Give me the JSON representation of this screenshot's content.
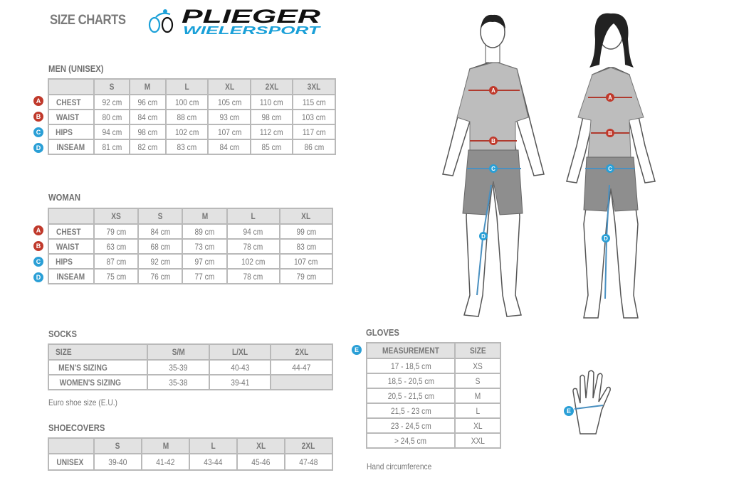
{
  "header": {
    "title": "SIZE CHARTS",
    "logo_text": {
      "line1": "PLIEGER",
      "line2": "WIELERSPORT"
    }
  },
  "colors": {
    "red_badge": "#c0392b",
    "blue_badge": "#2a9fd6",
    "logo_dark": "#111111",
    "logo_blue": "#1aa0d8"
  },
  "men": {
    "label": "MEN (UNISEX)",
    "sizes": [
      "S",
      "M",
      "L",
      "XL",
      "2XL",
      "3XL"
    ],
    "rows": [
      {
        "badge": "A",
        "label": "CHEST",
        "values": [
          "92 cm",
          "96 cm",
          "100 cm",
          "105 cm",
          "110 cm",
          "115 cm"
        ]
      },
      {
        "badge": "B",
        "label": "WAIST",
        "values": [
          "80 cm",
          "84 cm",
          "88 cm",
          "93 cm",
          "98 cm",
          "103 cm"
        ]
      },
      {
        "badge": "C",
        "label": "HIPS",
        "values": [
          "94 cm",
          "98 cm",
          "102 cm",
          "107 cm",
          "112 cm",
          "117 cm"
        ]
      },
      {
        "badge": "D",
        "label": "INSEAM",
        "values": [
          "81 cm",
          "82 cm",
          "83 cm",
          "84 cm",
          "85 cm",
          "86 cm"
        ]
      }
    ]
  },
  "woman": {
    "label": "WOMAN",
    "sizes": [
      "XS",
      "S",
      "M",
      "L",
      "XL"
    ],
    "rows": [
      {
        "badge": "A",
        "label": "CHEST",
        "values": [
          "79 cm",
          "84 cm",
          "89 cm",
          "94 cm",
          "99 cm"
        ]
      },
      {
        "badge": "B",
        "label": "WAIST",
        "values": [
          "63 cm",
          "68 cm",
          "73 cm",
          "78 cm",
          "83 cm"
        ]
      },
      {
        "badge": "C",
        "label": "HIPS",
        "values": [
          "87 cm",
          "92 cm",
          "97 cm",
          "102 cm",
          "107 cm"
        ]
      },
      {
        "badge": "D",
        "label": "INSEAM",
        "values": [
          "75 cm",
          "76 cm",
          "77 cm",
          "78 cm",
          "79 cm"
        ]
      }
    ]
  },
  "socks": {
    "label": "SOCKS",
    "header": [
      "SIZE",
      "S/M",
      "L/XL",
      "2XL"
    ],
    "rows": [
      {
        "label": "MEN'S SIZING",
        "values": [
          "35-39",
          "40-43",
          "44-47"
        ]
      },
      {
        "label": "WOMEN'S SIZING",
        "values": [
          "35-38",
          "39-41",
          ""
        ]
      }
    ],
    "note": "Euro shoe size (E.U.)"
  },
  "shoecovers": {
    "label": "SHOECOVERS",
    "sizes": [
      "S",
      "M",
      "L",
      "XL",
      "2XL"
    ],
    "rows": [
      {
        "label": "UNISEX",
        "values": [
          "39-40",
          "41-42",
          "43-44",
          "45-46",
          "47-48"
        ]
      }
    ]
  },
  "gloves": {
    "label": "GLOVES",
    "badge": "E",
    "header": [
      "MEASUREMENT",
      "SIZE"
    ],
    "rows": [
      {
        "measurement": "17 - 18,5 cm",
        "size": "XS"
      },
      {
        "measurement": "18,5 - 20,5 cm",
        "size": "S"
      },
      {
        "measurement": "20,5 - 21,5 cm",
        "size": "M"
      },
      {
        "measurement": "21,5 - 23 cm",
        "size": "L"
      },
      {
        "measurement": "23 - 24,5 cm",
        "size": "XL"
      },
      {
        "measurement": "> 24,5 cm",
        "size": "XXL"
      }
    ],
    "note": "Hand circumference"
  },
  "figures": {
    "markers": [
      "A",
      "B",
      "C",
      "D",
      "E"
    ]
  }
}
